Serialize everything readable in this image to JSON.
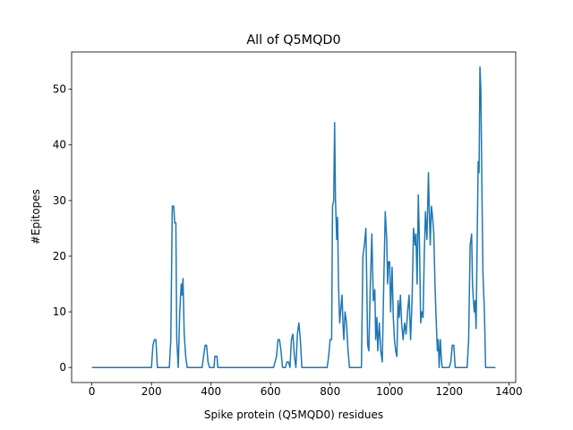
{
  "chart_data": {
    "type": "line",
    "title": "All of Q5MQD0",
    "x_label": "Spike protein (Q5MQD0) residues",
    "y_label": "#Epitopes",
    "xlim": [
      -68,
      1423
    ],
    "ylim": [
      -2.7,
      56.7
    ],
    "xticks": [
      0,
      200,
      400,
      600,
      800,
      1000,
      1200,
      1400
    ],
    "yticks": [
      0,
      10,
      20,
      30,
      40,
      50
    ],
    "series": [
      {
        "name": "Q5MQD0",
        "color": "#1f77b4",
        "x": [
          0,
          200,
          205,
          210,
          215,
          220,
          260,
          265,
          270,
          275,
          278,
          282,
          285,
          290,
          295,
          300,
          303,
          306,
          310,
          315,
          320,
          370,
          375,
          380,
          385,
          390,
          395,
          410,
          413,
          420,
          423,
          610,
          620,
          625,
          630,
          635,
          640,
          650,
          655,
          660,
          665,
          670,
          675,
          680,
          685,
          690,
          695,
          700,
          705,
          790,
          795,
          800,
          805,
          808,
          812,
          815,
          818,
          822,
          825,
          828,
          832,
          835,
          840,
          843,
          846,
          850,
          855,
          860,
          865,
          905,
          910,
          915,
          920,
          923,
          926,
          930,
          935,
          940,
          945,
          950,
          953,
          957,
          960,
          965,
          970,
          975,
          980,
          985,
          990,
          993,
          996,
          1000,
          1003,
          1008,
          1012,
          1016,
          1020,
          1024,
          1028,
          1032,
          1036,
          1040,
          1045,
          1050,
          1055,
          1060,
          1065,
          1070,
          1075,
          1080,
          1085,
          1088,
          1092,
          1096,
          1100,
          1104,
          1108,
          1112,
          1116,
          1120,
          1125,
          1130,
          1133,
          1136,
          1140,
          1144,
          1148,
          1152,
          1155,
          1160,
          1163,
          1166,
          1170,
          1173,
          1176,
          1200,
          1205,
          1210,
          1215,
          1220,
          1260,
          1265,
          1270,
          1275,
          1278,
          1281,
          1284,
          1287,
          1290,
          1293,
          1297,
          1300,
          1303,
          1306,
          1310,
          1313,
          1318,
          1322,
          1355
        ],
        "values": [
          0,
          0,
          4,
          5,
          5,
          0,
          0,
          5,
          29,
          29,
          26,
          26,
          5,
          0,
          10,
          15,
          13,
          16,
          6,
          2,
          0,
          0,
          2,
          4,
          4,
          1,
          0,
          0,
          2,
          2,
          0,
          0,
          2,
          5,
          5,
          3,
          0,
          0,
          1,
          1,
          0,
          5,
          6,
          2,
          0,
          6,
          8,
          5,
          0,
          0,
          2,
          5,
          5,
          29,
          30,
          44,
          30,
          23,
          27,
          15,
          8,
          10,
          13,
          8,
          5,
          10,
          8,
          3,
          0,
          0,
          20,
          22,
          25,
          15,
          4,
          3,
          15,
          24,
          12,
          14,
          5,
          9,
          3,
          8,
          3,
          1,
          15,
          28,
          23,
          15,
          19,
          19,
          10,
          18,
          9,
          5,
          3,
          2,
          12,
          9,
          13,
          8,
          5,
          8,
          6,
          10,
          13,
          5,
          12,
          25,
          22,
          24,
          15,
          31,
          22,
          8,
          10,
          9,
          20,
          28,
          23,
          35,
          28,
          22,
          29,
          27,
          24,
          15,
          10,
          3,
          5,
          0,
          5,
          2,
          0,
          0,
          1,
          4,
          4,
          0,
          0,
          5,
          22,
          24,
          15,
          12,
          10,
          12,
          7,
          20,
          37,
          35,
          54,
          50,
          30,
          17,
          10,
          0,
          0
        ]
      }
    ]
  }
}
